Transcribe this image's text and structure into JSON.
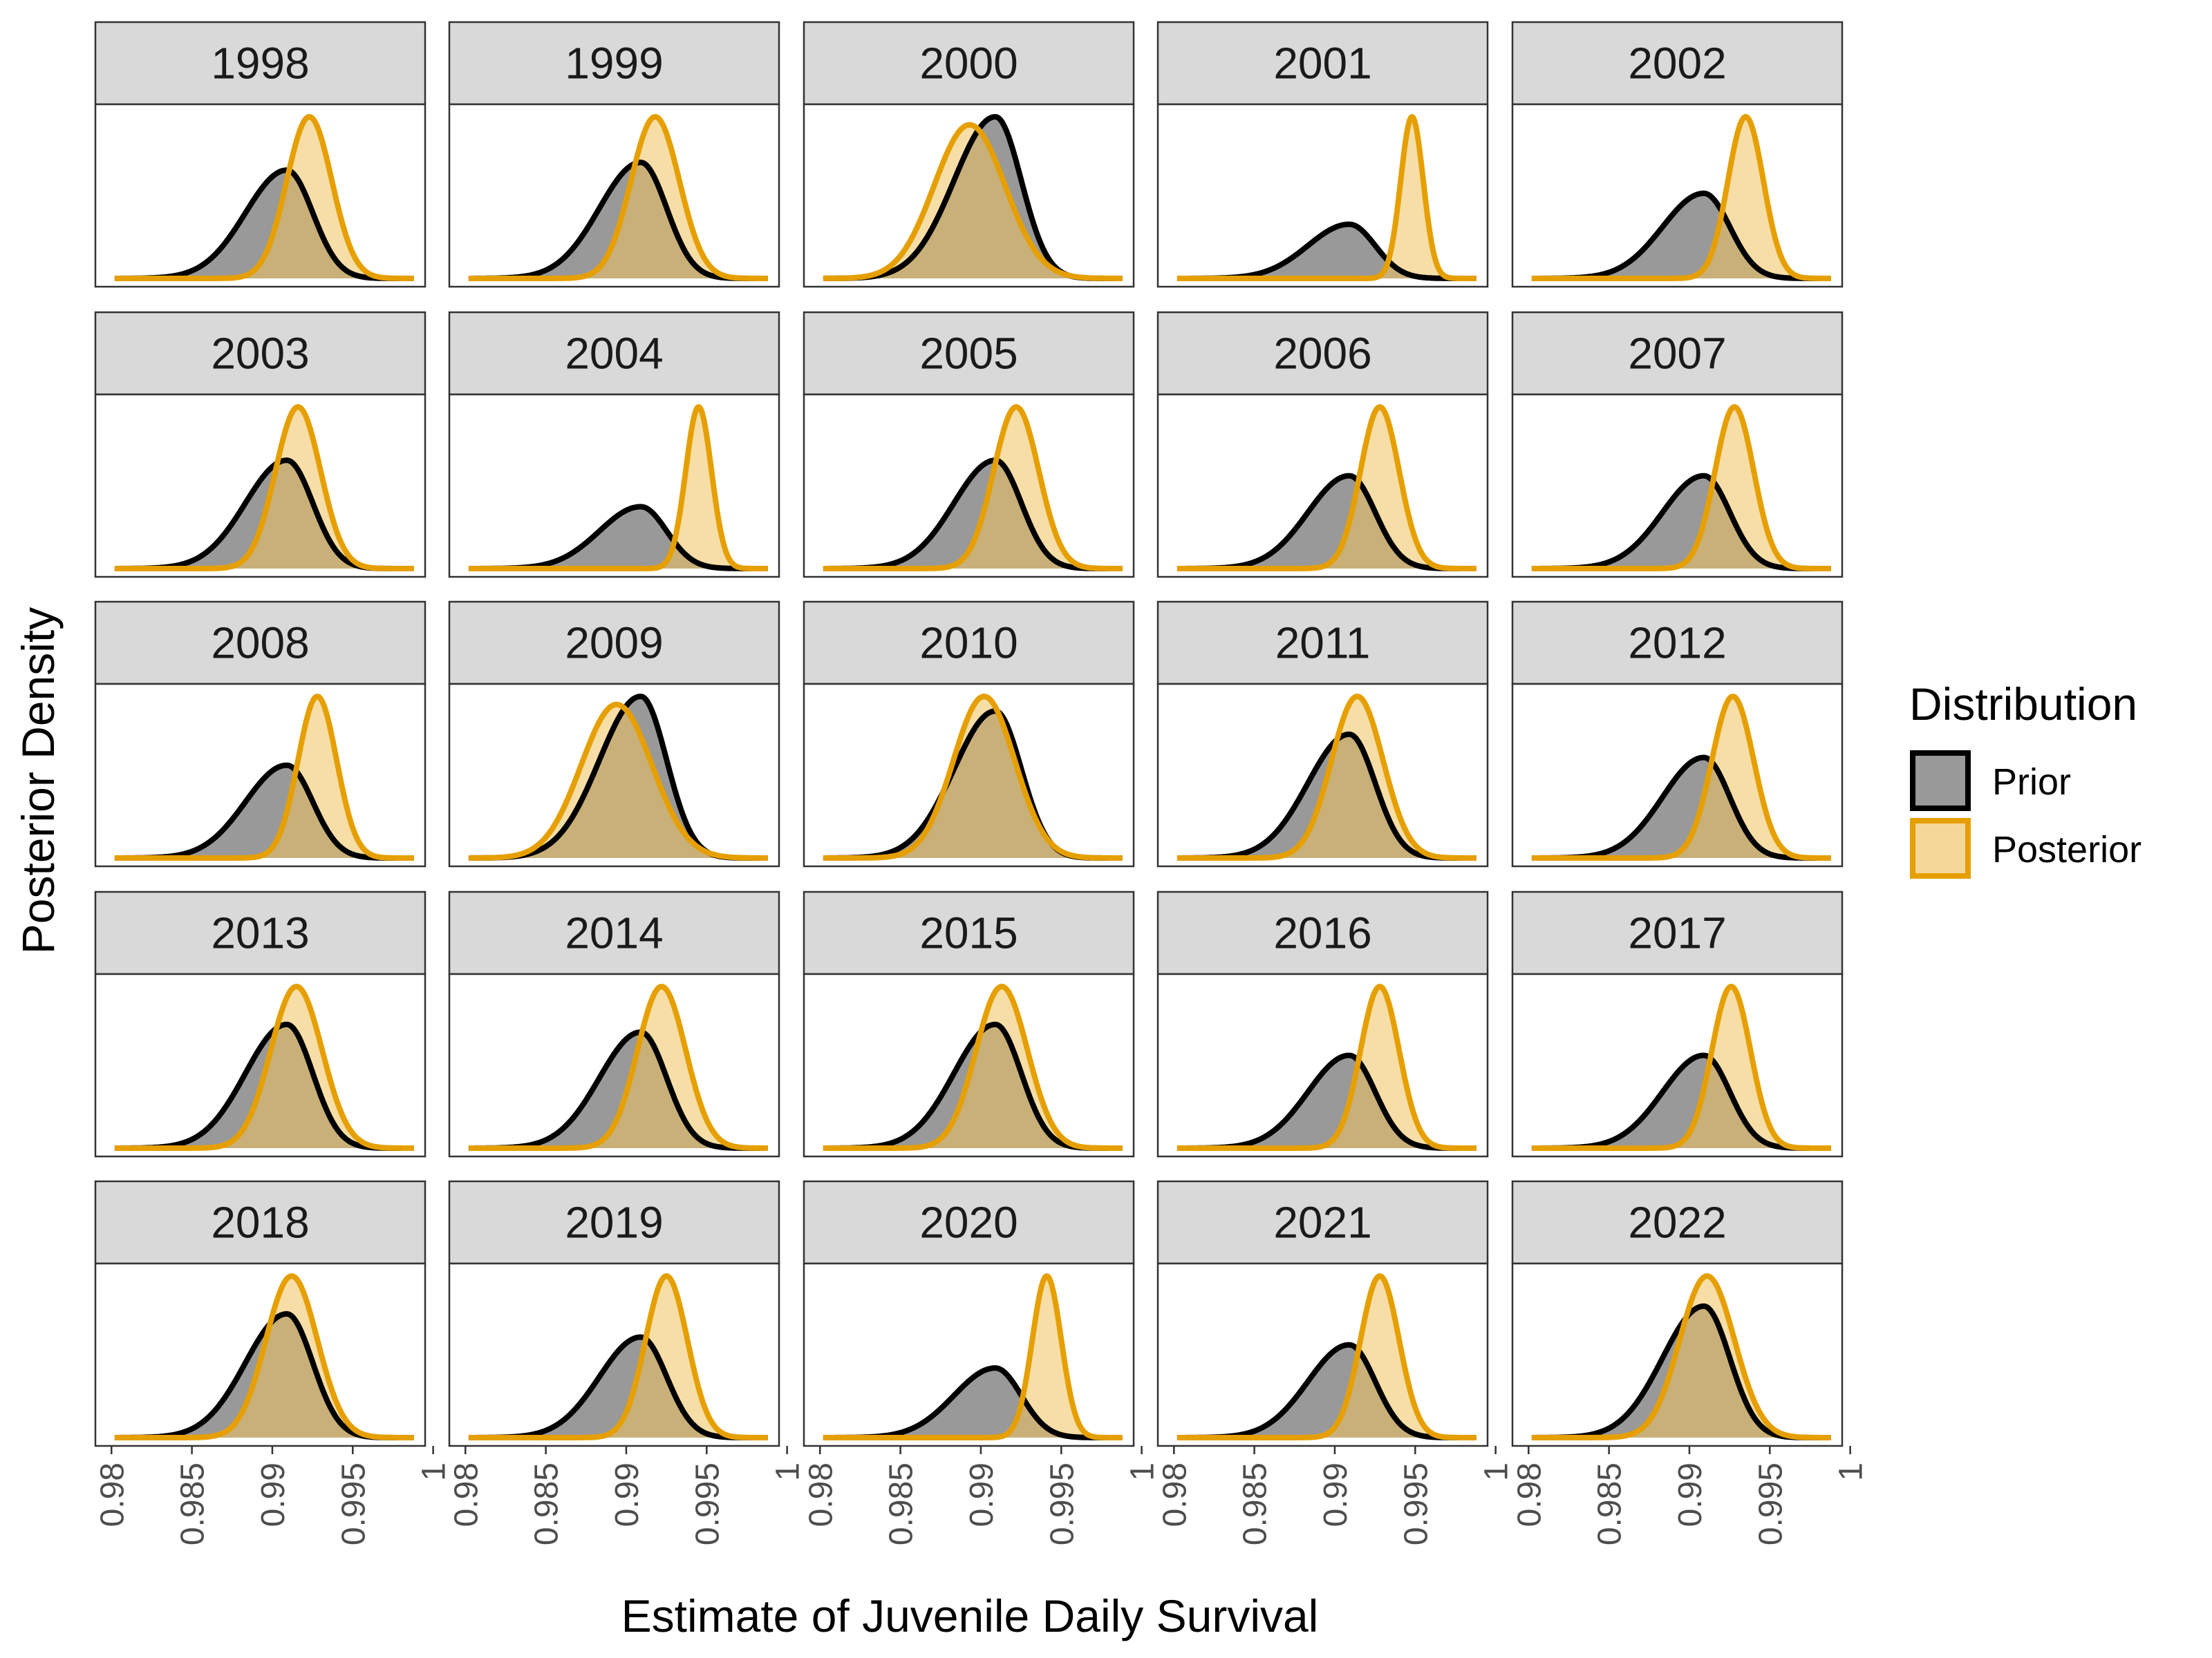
{
  "chart_data": {
    "type": "area",
    "layout": "facet-grid-5x5",
    "xlabel": "Estimate of Juvenile Daily Survival",
    "ylabel": "Posterior Density",
    "xlim": [
      0.979,
      0.9995
    ],
    "x_ticks": [
      0.98,
      0.985,
      0.99,
      0.995,
      1
    ],
    "x_tick_labels": [
      "0.98",
      "0.985",
      "0.99",
      "0.995",
      "1"
    ],
    "grid": false,
    "legend": {
      "title": "Distribution",
      "position": "right",
      "entries": [
        {
          "label": "Prior",
          "fill": "#999999",
          "stroke": "#000000"
        },
        {
          "label": "Posterior",
          "fill": "#f5d79a",
          "stroke": "#e69f00"
        }
      ]
    },
    "prior": {
      "mean": 0.9909,
      "sd": 0.0019,
      "skew": "left"
    },
    "series": [
      {
        "name": "Prior"
      },
      {
        "name": "Posterior"
      }
    ],
    "panels": [
      {
        "title": "1998",
        "posterior_mean": 0.9923,
        "posterior_sd": 0.0014
      },
      {
        "title": "1999",
        "posterior_mean": 0.9918,
        "posterior_sd": 0.0015
      },
      {
        "title": "2000",
        "posterior_mean": 0.9893,
        "posterior_sd": 0.0022
      },
      {
        "title": "2001",
        "posterior_mean": 0.9948,
        "posterior_sd": 0.0007
      },
      {
        "title": "2002",
        "posterior_mean": 0.9935,
        "posterior_sd": 0.0011
      },
      {
        "title": "2003",
        "posterior_mean": 0.9916,
        "posterior_sd": 0.0014
      },
      {
        "title": "2004",
        "posterior_mean": 0.9945,
        "posterior_sd": 0.0008
      },
      {
        "title": "2005",
        "posterior_mean": 0.9922,
        "posterior_sd": 0.0014
      },
      {
        "title": "2006",
        "posterior_mean": 0.9928,
        "posterior_sd": 0.0012
      },
      {
        "title": "2007",
        "posterior_mean": 0.9928,
        "posterior_sd": 0.0012
      },
      {
        "title": "2008",
        "posterior_mean": 0.9928,
        "posterior_sd": 0.0012
      },
      {
        "title": "2009",
        "posterior_mean": 0.9894,
        "posterior_sd": 0.0022
      },
      {
        "title": "2010",
        "posterior_mean": 0.9902,
        "posterior_sd": 0.0019
      },
      {
        "title": "2011",
        "posterior_mean": 0.9914,
        "posterior_sd": 0.0016
      },
      {
        "title": "2012",
        "posterior_mean": 0.9927,
        "posterior_sd": 0.0013
      },
      {
        "title": "2013",
        "posterior_mean": 0.9915,
        "posterior_sd": 0.0016
      },
      {
        "title": "2014",
        "posterior_mean": 0.9922,
        "posterior_sd": 0.0015
      },
      {
        "title": "2015",
        "posterior_mean": 0.9913,
        "posterior_sd": 0.0016
      },
      {
        "title": "2016",
        "posterior_mean": 0.9928,
        "posterior_sd": 0.0012
      },
      {
        "title": "2017",
        "posterior_mean": 0.9926,
        "posterior_sd": 0.0012
      },
      {
        "title": "2018",
        "posterior_mean": 0.9912,
        "posterior_sd": 0.0016
      },
      {
        "title": "2019",
        "posterior_mean": 0.9925,
        "posterior_sd": 0.0013
      },
      {
        "title": "2020",
        "posterior_mean": 0.9941,
        "posterior_sd": 0.0009
      },
      {
        "title": "2021",
        "posterior_mean": 0.9928,
        "posterior_sd": 0.0012
      },
      {
        "title": "2022",
        "posterior_mean": 0.9911,
        "posterior_sd": 0.0017
      }
    ]
  }
}
